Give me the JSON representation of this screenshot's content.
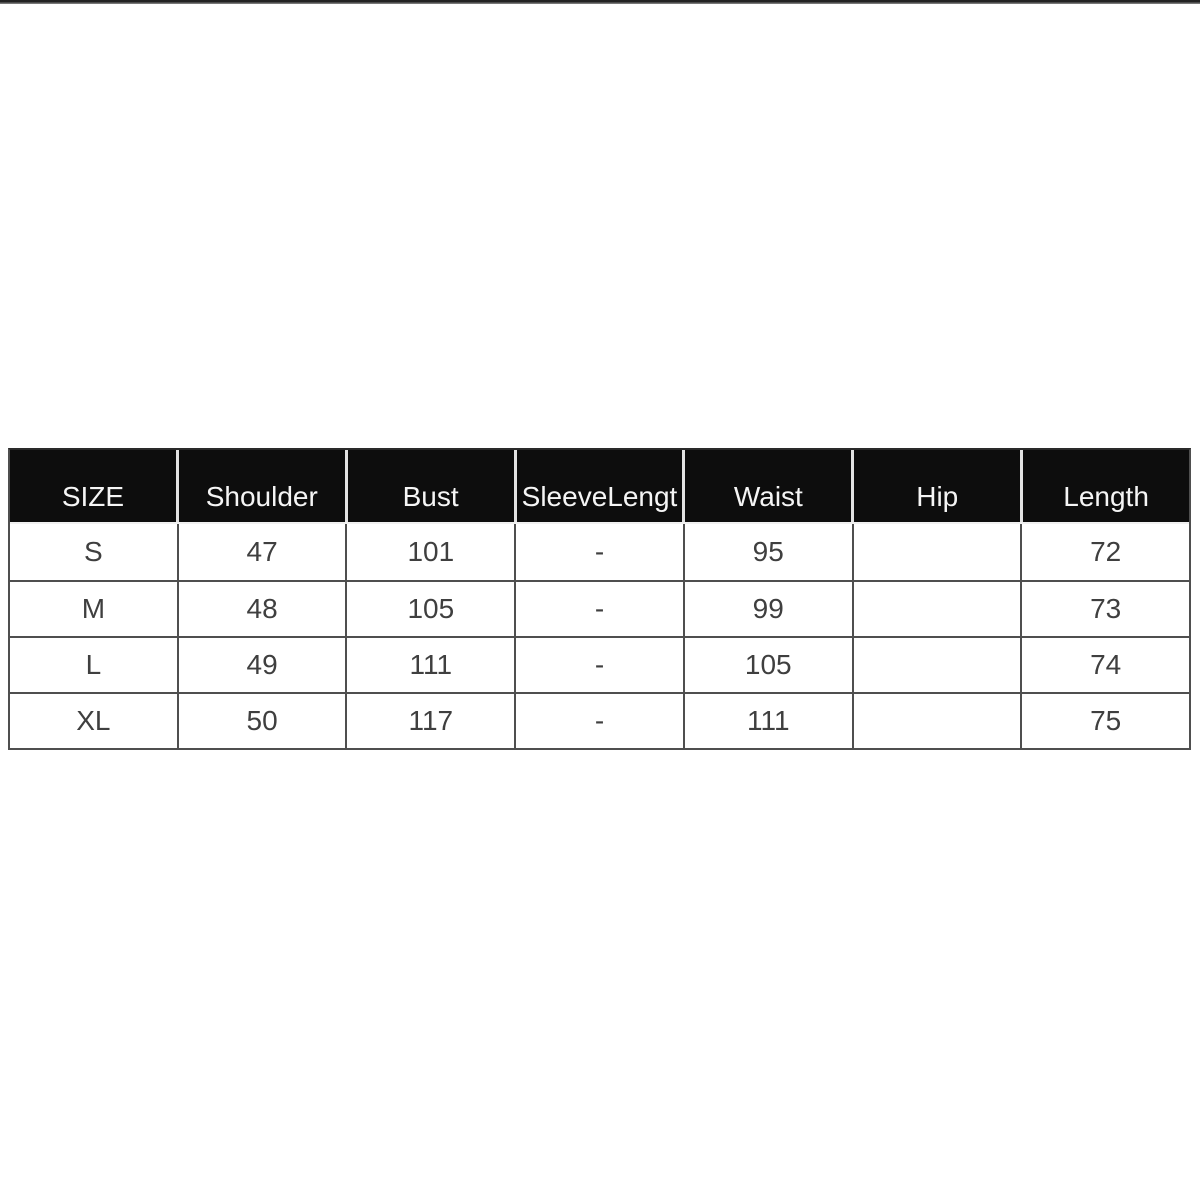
{
  "page": {
    "background": "#ffffff"
  },
  "colors": {
    "header_bg": "#0d0d0d",
    "header_text": "#f5f5f5",
    "border": "#4f4f4f",
    "header_gap": "#e2e2e2",
    "body_text": "#3f3f3f",
    "cell_bg": "#ffffff",
    "top_bar_dark": "#222222",
    "top_bar_light": "#777777"
  },
  "chart_data": {
    "type": "table",
    "columns": [
      "SIZE",
      "Shoulder",
      "Bust",
      "SleeveLengt",
      "Waist",
      "Hip",
      "Length"
    ],
    "rows": [
      [
        "S",
        "47",
        "101",
        "-",
        "95",
        "",
        "72"
      ],
      [
        "M",
        "48",
        "105",
        "-",
        "99",
        "",
        "73"
      ],
      [
        "L",
        "49",
        "111",
        "-",
        "105",
        "",
        "74"
      ],
      [
        "XL",
        "50",
        "117",
        "-",
        "111",
        "",
        "75"
      ]
    ],
    "layout": {
      "grid": true,
      "header_position": "top",
      "empty_columns": [
        "Hip"
      ]
    }
  }
}
